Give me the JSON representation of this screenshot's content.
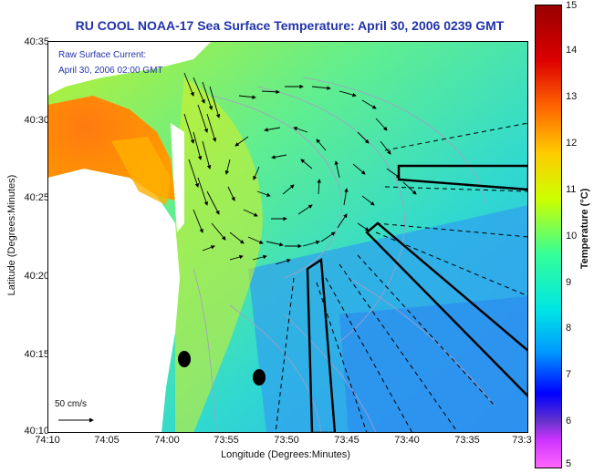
{
  "title": "RU COOL  NOAA-17  Sea Surface Temperature:  April 30, 2006 0239 GMT",
  "legend": {
    "line1": "Raw Surface Current:",
    "line2": "April 30, 2006 02:00 GMT"
  },
  "axes": {
    "xlabel": "Longitude (Degrees:Minutes)",
    "ylabel": "Latitude (Degrees:Minutes)",
    "lat_ticks": [
      "40:35",
      "40:30",
      "40:25",
      "40:20",
      "40:15",
      "40:10"
    ],
    "lon_ticks": [
      "74:10",
      "74:05",
      "74:00",
      "73:55",
      "73:50",
      "73:45",
      "73:40",
      "73:35",
      "73:3"
    ]
  },
  "colorbar": {
    "label": "Temperature (°C)",
    "ticks": [
      "15",
      "14",
      "13",
      "12",
      "11",
      "10",
      "9",
      "8",
      "7",
      "6",
      "5"
    ],
    "colors": [
      "#ff66ff",
      "#cc33ff",
      "#6633cc",
      "#0000ff",
      "#0099ff",
      "#00e5e5",
      "#33ff99",
      "#ccff00",
      "#ffcc00",
      "#ff6600",
      "#dd0000",
      "#990000"
    ]
  },
  "scale_bar": {
    "label": "50 cm/s"
  }
}
